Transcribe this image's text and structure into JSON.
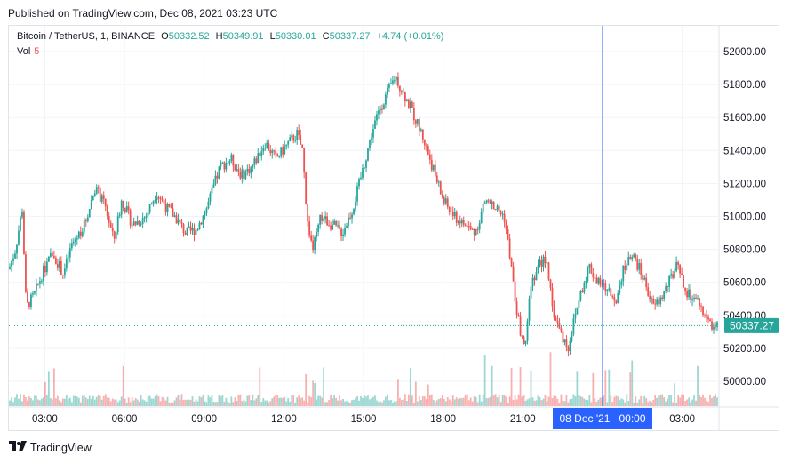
{
  "header": {
    "published": "Published on TradingView.com, Dec 08, 2021 03:23 UTC"
  },
  "legend": {
    "symbol": "Bitcoin / TetherUS, 1, BINANCE",
    "o_label": "O",
    "o": "50332.52",
    "h_label": "H",
    "h": "50349.91",
    "l_label": "L",
    "l": "50330.01",
    "c_label": "C",
    "c": "50337.27",
    "change": "+4.74 (+0.01%)",
    "vol_label": "Vol",
    "vol": "5"
  },
  "colors": {
    "up": "#26a69a",
    "down": "#ef5350",
    "crosshair": "#2962ff",
    "price_label_bg": "#26a69a",
    "time_label_bg": "#2962ff",
    "grid": "#f0f3fa"
  },
  "crosshair": {
    "time_label": "08 Dec '21   00:00"
  },
  "last_price": {
    "label": "50337.27",
    "value": 50337.27
  },
  "footer": {
    "brand": "TradingView",
    "logo_icon": "tradingview-logo-icon"
  },
  "chart_data": {
    "type": "candlestick",
    "title": "Bitcoin / TetherUS, 1, BINANCE",
    "interval": "1 minute",
    "y_ticks": [
      "52000.00",
      "51800.00",
      "51600.00",
      "51400.00",
      "51200.00",
      "51000.00",
      "50800.00",
      "50600.00",
      "50400.00",
      "50200.00",
      "50000.00"
    ],
    "x_ticks": [
      "03:00",
      "06:00",
      "09:00",
      "12:00",
      "15:00",
      "18:00",
      "21:00",
      "03:00"
    ],
    "ylim": [
      49880,
      52100
    ],
    "x_range_hours": [
      1.65,
      28.35
    ],
    "crosshair_hour": 24.0,
    "grid": true,
    "price_path": [
      [
        1.65,
        50680
      ],
      [
        1.9,
        50800
      ],
      [
        2.15,
        51050
      ],
      [
        2.3,
        50450
      ],
      [
        2.6,
        50520
      ],
      [
        2.9,
        50650
      ],
      [
        3.3,
        50780
      ],
      [
        3.7,
        50650
      ],
      [
        4.0,
        50820
      ],
      [
        4.5,
        50950
      ],
      [
        4.9,
        51180
      ],
      [
        5.3,
        51050
      ],
      [
        5.6,
        50850
      ],
      [
        5.9,
        51100
      ],
      [
        6.3,
        50950
      ],
      [
        6.8,
        51000
      ],
      [
        7.2,
        51150
      ],
      [
        7.6,
        51050
      ],
      [
        7.9,
        51000
      ],
      [
        8.3,
        50900
      ],
      [
        8.7,
        50920
      ],
      [
        9.1,
        51050
      ],
      [
        9.6,
        51300
      ],
      [
        10.0,
        51350
      ],
      [
        10.4,
        51250
      ],
      [
        10.8,
        51300
      ],
      [
        11.3,
        51450
      ],
      [
        11.7,
        51350
      ],
      [
        12.2,
        51450
      ],
      [
        12.5,
        51500
      ],
      [
        12.7,
        51400
      ],
      [
        12.9,
        50950
      ],
      [
        13.1,
        50800
      ],
      [
        13.4,
        51000
      ],
      [
        13.8,
        50950
      ],
      [
        14.2,
        50900
      ],
      [
        14.6,
        51050
      ],
      [
        15.0,
        51300
      ],
      [
        15.3,
        51500
      ],
      [
        15.6,
        51650
      ],
      [
        15.9,
        51750
      ],
      [
        16.2,
        51850
      ],
      [
        16.5,
        51750
      ],
      [
        16.8,
        51650
      ],
      [
        17.2,
        51500
      ],
      [
        17.6,
        51300
      ],
      [
        18.0,
        51100
      ],
      [
        18.4,
        51000
      ],
      [
        18.8,
        50950
      ],
      [
        19.2,
        50900
      ],
      [
        19.6,
        51100
      ],
      [
        20.0,
        51050
      ],
      [
        20.3,
        51000
      ],
      [
        20.5,
        50780
      ],
      [
        20.7,
        50500
      ],
      [
        20.9,
        50300
      ],
      [
        21.1,
        50200
      ],
      [
        21.3,
        50600
      ],
      [
        21.6,
        50700
      ],
      [
        21.9,
        50750
      ],
      [
        22.1,
        50450
      ],
      [
        22.4,
        50300
      ],
      [
        22.7,
        50200
      ],
      [
        22.9,
        50350
      ],
      [
        23.2,
        50550
      ],
      [
        23.5,
        50700
      ],
      [
        23.8,
        50600
      ],
      [
        24.2,
        50550
      ],
      [
        24.5,
        50500
      ],
      [
        24.8,
        50700
      ],
      [
        25.2,
        50750
      ],
      [
        25.6,
        50600
      ],
      [
        25.9,
        50450
      ],
      [
        26.2,
        50500
      ],
      [
        26.5,
        50600
      ],
      [
        26.8,
        50700
      ],
      [
        27.1,
        50550
      ],
      [
        27.4,
        50500
      ],
      [
        27.7,
        50450
      ],
      [
        28.0,
        50350
      ],
      [
        28.35,
        50337
      ]
    ]
  }
}
